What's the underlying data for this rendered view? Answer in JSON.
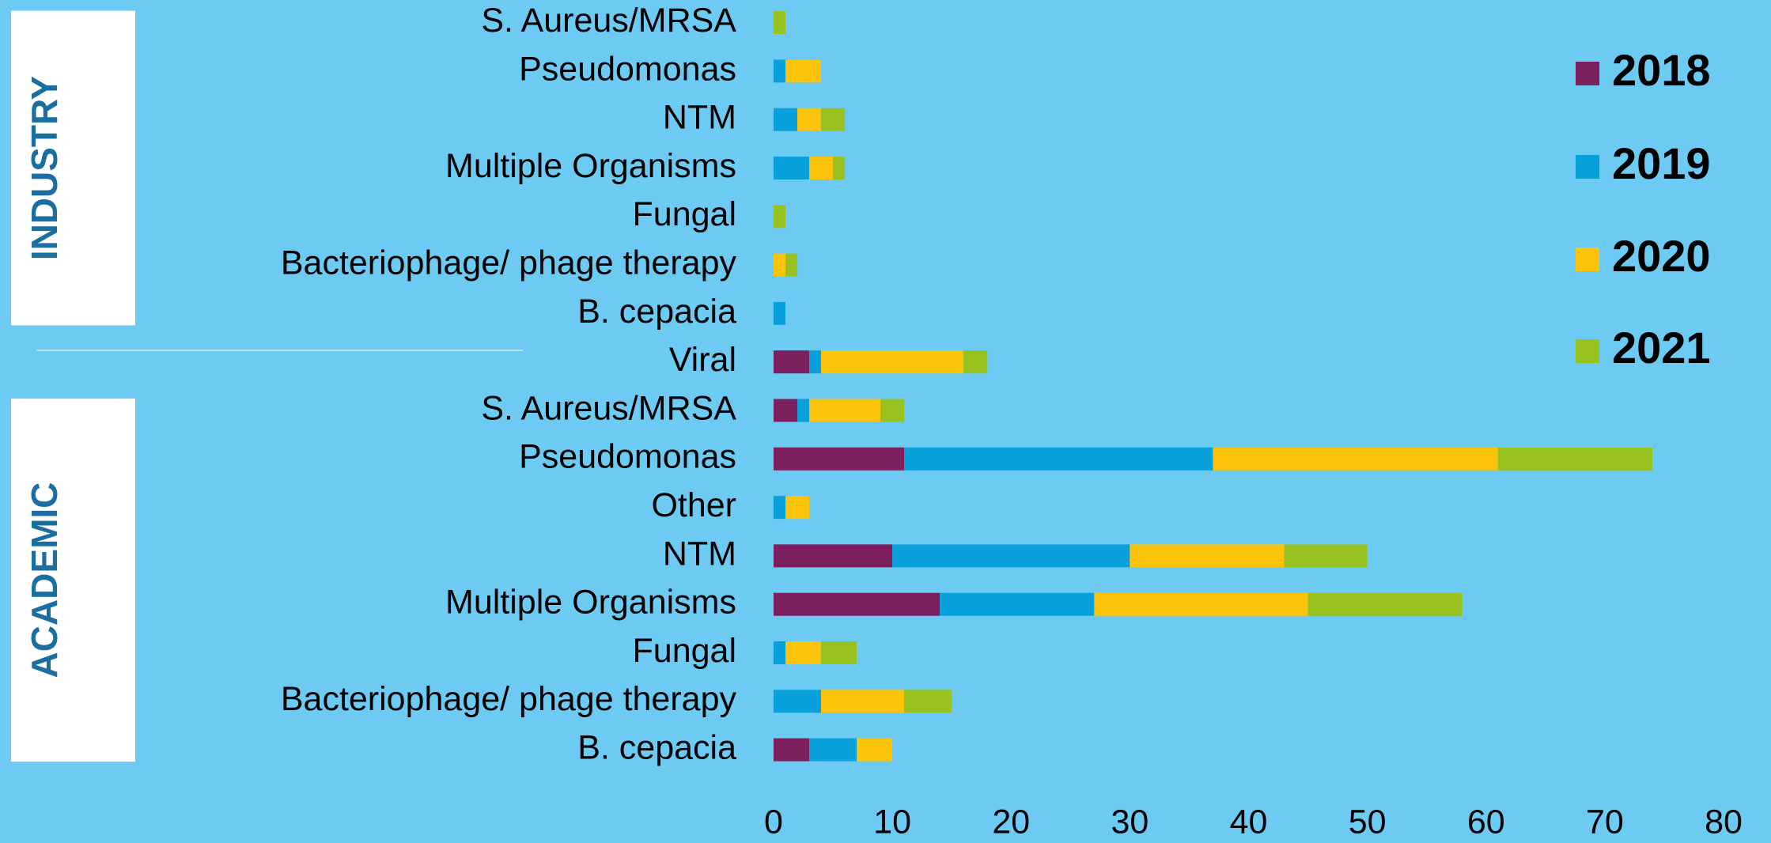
{
  "chart_data": {
    "type": "stacked-barh",
    "groups": [
      {
        "label": "INDUSTRY",
        "first": 0,
        "last": 6
      },
      {
        "label": "ACADEMIC",
        "first": 8,
        "last": 15
      }
    ],
    "categories": [
      "S. Aureus/MRSA",
      "Pseudomonas",
      "NTM",
      "Multiple Organisms",
      "Fungal",
      "Bacteriophage/ phage therapy",
      "B. cepacia",
      "Viral",
      "S. Aureus/MRSA",
      "Pseudomonas",
      "Other",
      "NTM",
      "Multiple Organisms",
      "Fungal",
      "Bacteriophage/ phage therapy",
      "B. cepacia"
    ],
    "series": [
      {
        "name": "2018",
        "color": "#7b1f5e",
        "values": [
          0,
          0,
          0,
          0,
          0,
          0,
          0,
          3,
          2,
          11,
          0,
          10,
          14,
          0,
          0,
          3
        ]
      },
      {
        "name": "2019",
        "color": "#0aa0dc",
        "values": [
          0,
          1,
          2,
          3,
          0,
          0,
          1,
          1,
          1,
          26,
          1,
          20,
          13,
          1,
          4,
          4
        ]
      },
      {
        "name": "2020",
        "color": "#fcc30b",
        "values": [
          0,
          3,
          2,
          2,
          0,
          1,
          0,
          12,
          6,
          24,
          2,
          13,
          18,
          3,
          7,
          3
        ]
      },
      {
        "name": "2021",
        "color": "#98c21f",
        "values": [
          1,
          0,
          2,
          1,
          1,
          1,
          0,
          2,
          2,
          13,
          0,
          7,
          13,
          3,
          4,
          0
        ]
      }
    ],
    "xlim": [
      0,
      80
    ],
    "xticks": [
      0,
      10,
      20,
      30,
      40,
      50,
      60,
      70,
      80
    ],
    "grid": false,
    "legend": "right"
  }
}
